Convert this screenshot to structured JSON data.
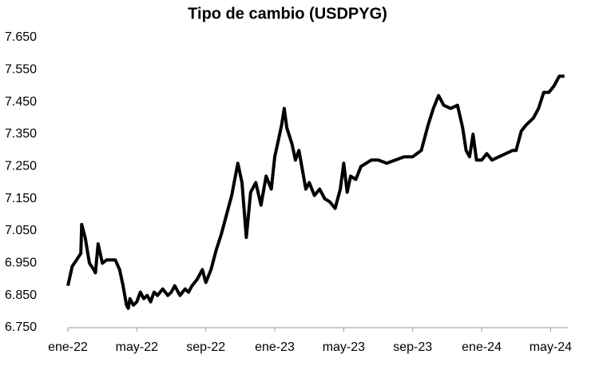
{
  "chart_data": {
    "type": "line",
    "title": "Tipo de cambio (USDPYG)",
    "x": [
      0,
      0.25,
      0.5,
      0.75,
      0.8,
      1.0,
      1.25,
      1.5,
      1.6,
      1.75,
      2.0,
      2.25,
      2.5,
      2.75,
      3.0,
      3.2,
      3.4,
      3.5,
      3.6,
      3.8,
      4.0,
      4.2,
      4.4,
      4.6,
      4.8,
      5.0,
      5.2,
      5.5,
      5.8,
      6.0,
      6.2,
      6.5,
      6.8,
      7.0,
      7.2,
      7.5,
      7.8,
      8.0,
      8.3,
      8.6,
      8.9,
      9.2,
      9.5,
      9.86,
      10.1,
      10.35,
      10.6,
      10.9,
      11.2,
      11.5,
      11.8,
      12.0,
      12.2,
      12.4,
      12.55,
      12.7,
      13.0,
      13.2,
      13.4,
      13.6,
      13.8,
      14.0,
      14.3,
      14.6,
      14.9,
      15.2,
      15.5,
      15.8,
      16.0,
      16.2,
      16.4,
      16.7,
      17.0,
      17.3,
      17.6,
      18.0,
      18.5,
      19.0,
      19.5,
      20.0,
      20.5,
      20.9,
      21.2,
      21.5,
      21.8,
      22.2,
      22.6,
      22.9,
      23.1,
      23.3,
      23.5,
      23.7,
      24.0,
      24.3,
      24.6,
      25.0,
      25.4,
      25.8,
      26.0,
      26.3,
      26.6,
      27.0,
      27.3,
      27.6,
      27.9,
      28.2,
      28.5,
      28.8
    ],
    "series": [
      {
        "name": "USDPYG",
        "color": "#000000",
        "values": [
          6.88,
          6.94,
          6.96,
          6.98,
          7.07,
          7.03,
          6.95,
          6.93,
          6.92,
          7.01,
          6.95,
          6.96,
          6.96,
          6.96,
          6.93,
          6.88,
          6.82,
          6.81,
          6.84,
          6.82,
          6.83,
          6.86,
          6.84,
          6.85,
          6.83,
          6.86,
          6.85,
          6.87,
          6.85,
          6.86,
          6.88,
          6.85,
          6.87,
          6.86,
          6.88,
          6.9,
          6.93,
          6.89,
          6.93,
          6.99,
          7.04,
          7.1,
          7.16,
          7.26,
          7.2,
          7.03,
          7.17,
          7.2,
          7.13,
          7.22,
          7.18,
          7.28,
          7.33,
          7.38,
          7.43,
          7.37,
          7.32,
          7.27,
          7.3,
          7.24,
          7.18,
          7.2,
          7.16,
          7.18,
          7.15,
          7.14,
          7.12,
          7.18,
          7.26,
          7.17,
          7.22,
          7.21,
          7.25,
          7.26,
          7.27,
          7.27,
          7.26,
          7.27,
          7.28,
          7.28,
          7.3,
          7.38,
          7.43,
          7.47,
          7.44,
          7.43,
          7.44,
          7.37,
          7.3,
          7.28,
          7.35,
          7.27,
          7.27,
          7.29,
          7.27,
          7.28,
          7.29,
          7.3,
          7.3,
          7.36,
          7.38,
          7.4,
          7.43,
          7.48,
          7.48,
          7.5,
          7.53,
          7.53
        ]
      }
    ],
    "xlim": [
      0,
      29
    ],
    "xticks": [
      {
        "value": 0,
        "label": "ene-22"
      },
      {
        "value": 4,
        "label": "may-22"
      },
      {
        "value": 8,
        "label": "sep-22"
      },
      {
        "value": 12,
        "label": "ene-23"
      },
      {
        "value": 16,
        "label": "may-23"
      },
      {
        "value": 20,
        "label": "sep-23"
      },
      {
        "value": 24,
        "label": "ene-24"
      },
      {
        "value": 28,
        "label": "may-24"
      }
    ],
    "ylim": [
      6.75,
      7.65
    ],
    "yticks": [
      {
        "value": 6.75,
        "label": "6.750"
      },
      {
        "value": 6.85,
        "label": "6.850"
      },
      {
        "value": 6.95,
        "label": "6.950"
      },
      {
        "value": 7.05,
        "label": "7.050"
      },
      {
        "value": 7.15,
        "label": "7.150"
      },
      {
        "value": 7.25,
        "label": "7.250"
      },
      {
        "value": 7.35,
        "label": "7.350"
      },
      {
        "value": 7.45,
        "label": "7.450"
      },
      {
        "value": 7.55,
        "label": "7.550"
      },
      {
        "value": 7.65,
        "label": "7.650"
      }
    ],
    "grid": false
  }
}
